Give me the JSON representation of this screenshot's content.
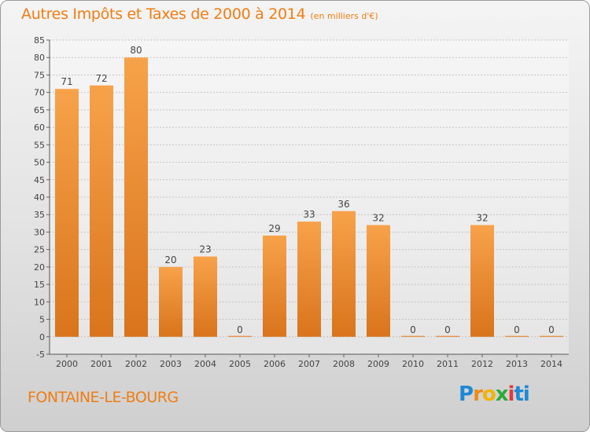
{
  "header": {
    "title": "Autres Impôts et Taxes de 2000 à 2014",
    "unit": "(en milliers d'€)"
  },
  "footer": {
    "commune": "FONTAINE-LE-BOURG",
    "logo_text": "Proxiti"
  },
  "colors": {
    "accent": "#f07d12",
    "bar_light": "#f7a24a",
    "bar_dark": "#d9741c"
  },
  "chart_data": {
    "type": "bar",
    "title": "Autres Impôts et Taxes de 2000 à 2014",
    "subtitle": "(en milliers d'€)",
    "categories": [
      "2000",
      "2001",
      "2002",
      "2003",
      "2004",
      "2005",
      "2006",
      "2007",
      "2008",
      "2009",
      "2010",
      "2011",
      "2012",
      "2013",
      "2014"
    ],
    "values": [
      71,
      72,
      80,
      20,
      23,
      0,
      29,
      33,
      36,
      32,
      0,
      0,
      32,
      0,
      0
    ],
    "ylim": [
      -5,
      85
    ],
    "yticks": [
      -5,
      0,
      5,
      10,
      15,
      20,
      25,
      30,
      35,
      40,
      45,
      50,
      55,
      60,
      65,
      70,
      75,
      80,
      85
    ],
    "grid": true,
    "xlabel": "",
    "ylabel": ""
  }
}
